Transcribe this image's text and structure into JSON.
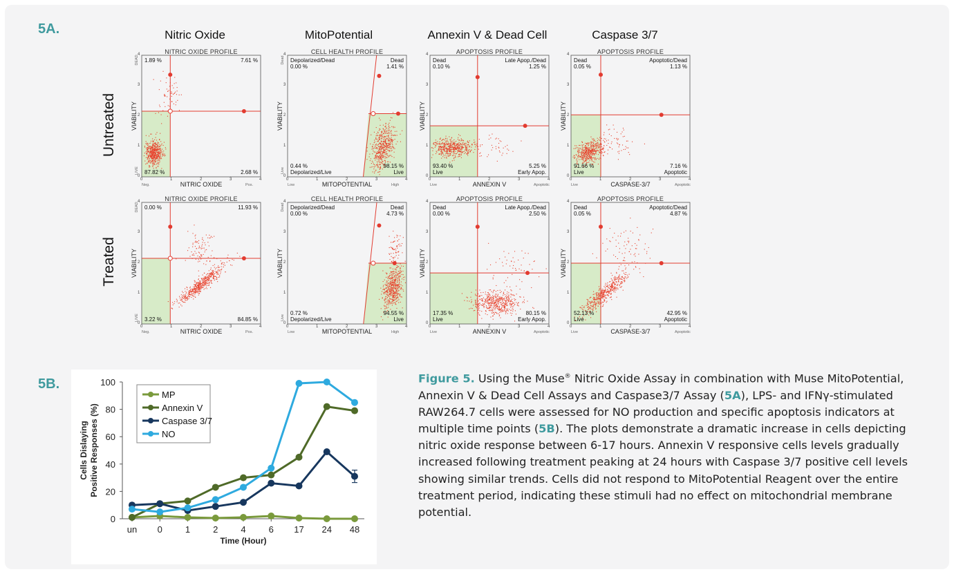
{
  "panel_a": {
    "tag": "5A.",
    "columns": [
      "Nitric Oxide",
      "MitoPotential",
      "Annexin V & Dead Cell",
      "Caspase 3/7"
    ],
    "rows": [
      "Untreated",
      "Treated"
    ],
    "plots": [
      {
        "title": "NITRIC OXIDE PROFILE",
        "xlabel": "NITRIC OXIDE",
        "ylabel": "VIABILITY",
        "x_low": "Neg.",
        "x_high": "Pos.",
        "y_top": "DEAD",
        "y_bottom": "LIVE",
        "tl": "1.89 %",
        "tr": "7.61 %",
        "bl": "87.82 %",
        "br": "2.68 %",
        "tl_name": "",
        "tr_name": "",
        "bl_name": "",
        "br_name": ""
      },
      {
        "title": "CELL HEALTH PROFILE",
        "xlabel": "MITOPOTENTIAL",
        "ylabel": "VIABILITY",
        "x_low": "Low",
        "x_high": "High",
        "y_top": "Dead",
        "y_bottom": "Live",
        "tl": "0.00 %",
        "tr": "1.41 %",
        "bl": "0.44 %",
        "br": "98.15 %",
        "tl_name": "Depolarized/Dead",
        "tr_name": "Dead",
        "bl_name": "Depolarized/Live",
        "br_name": "Live"
      },
      {
        "title": "APOPTOSIS PROFILE",
        "xlabel": "ANNEXIN V",
        "ylabel": "VIABILITY",
        "x_low": "Live",
        "x_high": "Apoptotic",
        "y_top": "",
        "y_bottom": "",
        "tl": "0.10 %",
        "tr": "1.25 %",
        "bl": "93.40 %",
        "br": "5.25 %",
        "tl_name": "Dead",
        "tr_name": "Late Apop./Dead",
        "bl_name": "Live",
        "br_name": "Early Apop."
      },
      {
        "title": "APOPTOSIS PROFILE",
        "xlabel": "CASPASE-3/7",
        "ylabel": "VIABILITY",
        "x_low": "Live",
        "x_high": "Apoptotic",
        "y_top": "",
        "y_bottom": "",
        "tl": "0.05 %",
        "tr": "1.13 %",
        "bl": "91.66 %",
        "br": "7.16 %",
        "tl_name": "Dead",
        "tr_name": "Apoptotic/Dead",
        "bl_name": "Live",
        "br_name": "Apoptotic"
      },
      {
        "title": "NITRIC OXIDE PROFILE",
        "xlabel": "NITRIC OXIDE",
        "ylabel": "VIABILITY",
        "x_low": "Neg.",
        "x_high": "Pos.",
        "y_top": "DEAD",
        "y_bottom": "LIVE",
        "tl": "0.00 %",
        "tr": "11.93 %",
        "bl": "3.22 %",
        "br": "84.85 %",
        "tl_name": "",
        "tr_name": "",
        "bl_name": "",
        "br_name": ""
      },
      {
        "title": "CELL HEALTH PROFILE",
        "xlabel": "MITOPOTENTIAL",
        "ylabel": "VIABILITY",
        "x_low": "Low",
        "x_high": "High",
        "y_top": "Dead",
        "y_bottom": "Live",
        "tl": "0.00 %",
        "tr": "4.73 %",
        "bl": "0.72 %",
        "br": "94.55 %",
        "tl_name": "Depolarized/Dead",
        "tr_name": "Dead",
        "bl_name": "Depolarized/Live",
        "br_name": "Live"
      },
      {
        "title": "APOPTOSIS PROFILE",
        "xlabel": "ANNEXIN V",
        "ylabel": "VIABILITY",
        "x_low": "Live",
        "x_high": "Apoptotic",
        "y_top": "",
        "y_bottom": "",
        "tl": "0.00 %",
        "tr": "2.50 %",
        "bl": "17.35 %",
        "br": "80.15 %",
        "tl_name": "Dead",
        "tr_name": "Late Apop./Dead",
        "bl_name": "Live",
        "br_name": "Early Apop."
      },
      {
        "title": "APOPTOSIS PROFILE",
        "xlabel": "CASPASE-3/7",
        "ylabel": "VIABILITY",
        "x_low": "Live",
        "x_high": "Apoptotic",
        "y_top": "",
        "y_bottom": "",
        "tl": "0.05 %",
        "tr": "4.87 %",
        "bl": "52.13 %",
        "br": "42.95 %",
        "tl_name": "Dead",
        "tr_name": "Apoptotic/Dead",
        "bl_name": "Live",
        "br_name": "Apoptotic"
      }
    ]
  },
  "panel_b": {
    "tag": "5B."
  },
  "chart_data": {
    "type": "line",
    "categories": [
      "un",
      "0",
      "1",
      "2",
      "4",
      "6",
      "17",
      "24",
      "48"
    ],
    "xlabel": "Time (Hour)",
    "ylabel": "Cells Dislaying Positive Responses (%)",
    "ylabel_lines": [
      "Cells Dislaying",
      "Positive Responses (%)"
    ],
    "ylim": [
      0,
      100
    ],
    "yticks": [
      0,
      20,
      40,
      60,
      80,
      100
    ],
    "legend_position": "top-left",
    "series": [
      {
        "name": "MP",
        "color": "#7a9a3c",
        "values": [
          1,
          2,
          1,
          0.5,
          1,
          2,
          0.5,
          0,
          0
        ]
      },
      {
        "name": "Annexin V",
        "color": "#4f6a28",
        "values": [
          1,
          11,
          13,
          23,
          30,
          32,
          45,
          82,
          79
        ]
      },
      {
        "name": "Caspase 3/7",
        "color": "#17375e",
        "values": [
          10,
          11,
          6,
          9,
          12,
          26,
          24,
          49,
          31
        ]
      },
      {
        "name": "NO",
        "color": "#2eaadf",
        "values": [
          7,
          5,
          8,
          14,
          23,
          37,
          99,
          100,
          85
        ]
      }
    ]
  },
  "caption": {
    "fig_label": "Figure 5.",
    "t1": " Using the Muse",
    "reg": "®",
    "t2": " Nitric Oxide Assay in combination with Muse MitoPotential, Annexin V & Dead Cell Assays and Caspase3/7 Assay (",
    "ref_a": "5A",
    "t3": "),  LPS- and IFNγ-stimulated RAW264.7 cells were assessed for NO production and specific apoptosis indicators at multiple time points (",
    "ref_b": "5B",
    "t4": "). The plots demonstrate a dramatic increase in cells depicting nitric oxide response between 6-17 hours. Annexin V responsive cells  levels gradually increased following treatment peaking at 24 hours with Caspase 3/7  positive cell levels showing similar trends. Cells did not respond to MitoPotential Reagent over the entire treatment period, indicating these stimuli had no effect on mitochondrial membrane potential."
  },
  "colors": {
    "accent": "#3f9a9e",
    "gate_line": "#e23b30",
    "dots": "#e8412c",
    "live_region": "#d7ebc8"
  }
}
